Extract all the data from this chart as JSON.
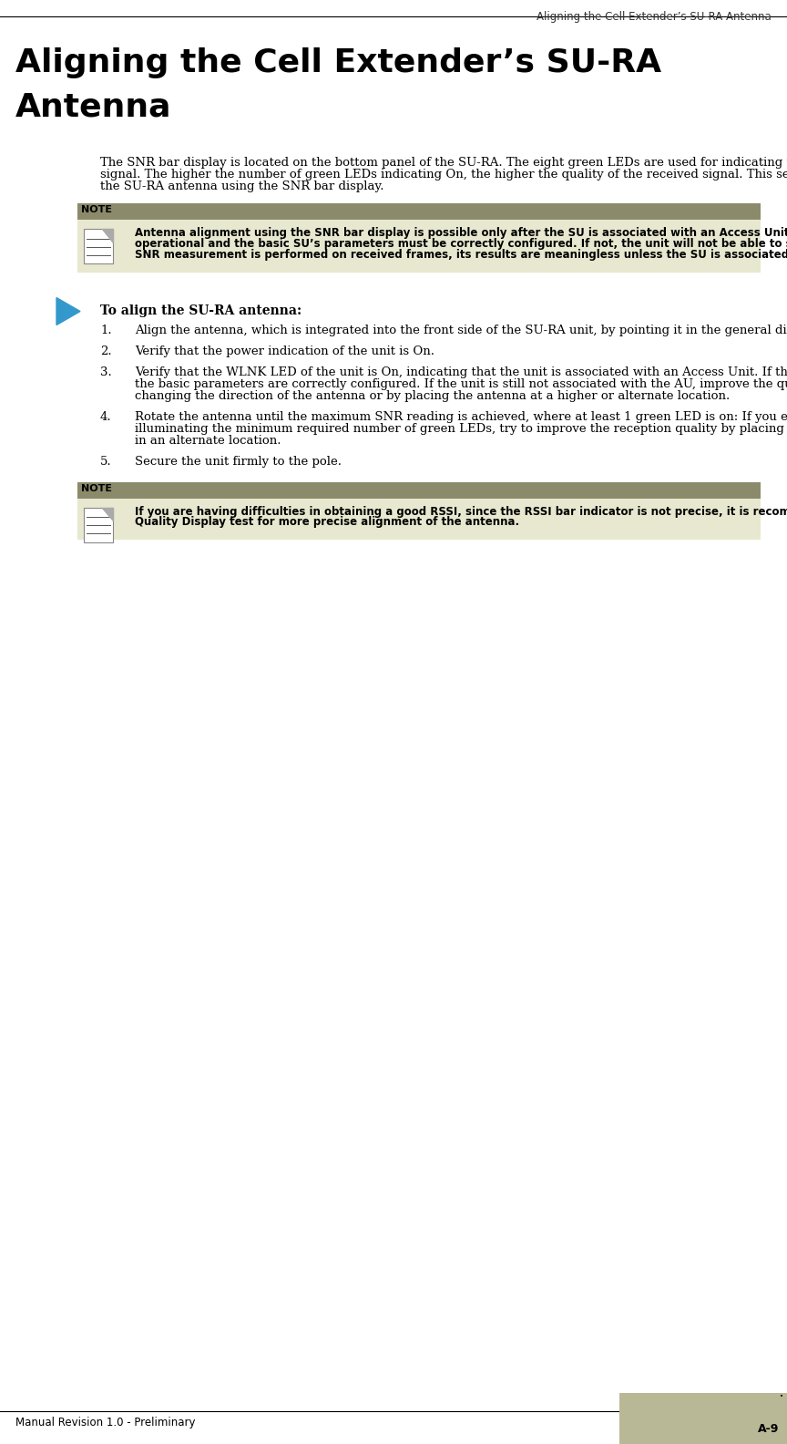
{
  "header_text": "Aligning the Cell Extender’s SU-RA Antenna",
  "title_line1": "Aligning the Cell Extender’s SU-RA",
  "title_line2": "Antenna",
  "intro_text": "The SNR bar display is located on the bottom panel of the SU-RA. The eight green LEDs are used for indicating the quality of the received signal. The higher the number of green LEDs indicating On, the higher the quality of the received signal. This section describes how to align the SU-RA antenna using the SNR bar display.",
  "note1_label": "NOTE",
  "note1_text": "Antenna alignment using the SNR bar display is possible only after the SU is associated with an Access Unit. The associated Access Unit must be operational and the basic SU’s parameters must be correctly configured. If not, the unit will not be able to synchronize with the Access Unit. As the SNR measurement is performed on received frames, its results are meaningless unless the SU is associated with an Access Unit.",
  "procedure_header": "To align the SU-RA antenna:",
  "steps": [
    "Align the antenna, which is integrated into the front side of the SU-RA unit, by pointing it in the general direction of the Base Station.",
    "Verify that the power indication of the unit is __On__.",
    "Verify that the WLNK LED of the unit is __On__, indicating that the unit is associated with an Access Unit. If the WLNK LED is __Off__, check that the basic parameters are correctly configured. If the unit is still not associated with the AU, improve the quality of the link by changing the direction of the antenna or by placing the antenna at a higher or alternate location.",
    "Rotate the antenna until the maximum SNR reading is achieved, where at least 1 green LED is on: If you encounter prolonged difficulty in illuminating the minimum required number of green LEDs, try to improve the reception quality by placing the antenna at a higher point or in an alternate location.",
    "Secure the unit firmly to the pole."
  ],
  "note2_label": "NOTE",
  "note2_text": "If you are having difficulties in obtaining a good RSSI, since the RSSI bar indicator is not precise, it is recommended that you use the Continuous Link Quality Display test for more precise alignment of the antenna.",
  "footer_left": "Manual Revision 1.0 - Preliminary",
  "footer_right": "A-9",
  "note_label_bg": "#8b8b6b",
  "note_body_bg": "#e8e8d0",
  "bg_color": "#ffffff",
  "text_color": "#000000",
  "header_color": "#333333",
  "title_color": "#000000",
  "footer_tab_color": "#b8b896",
  "body_text_size": 9.5,
  "title_text_size": 26,
  "header_text_size": 8.5
}
